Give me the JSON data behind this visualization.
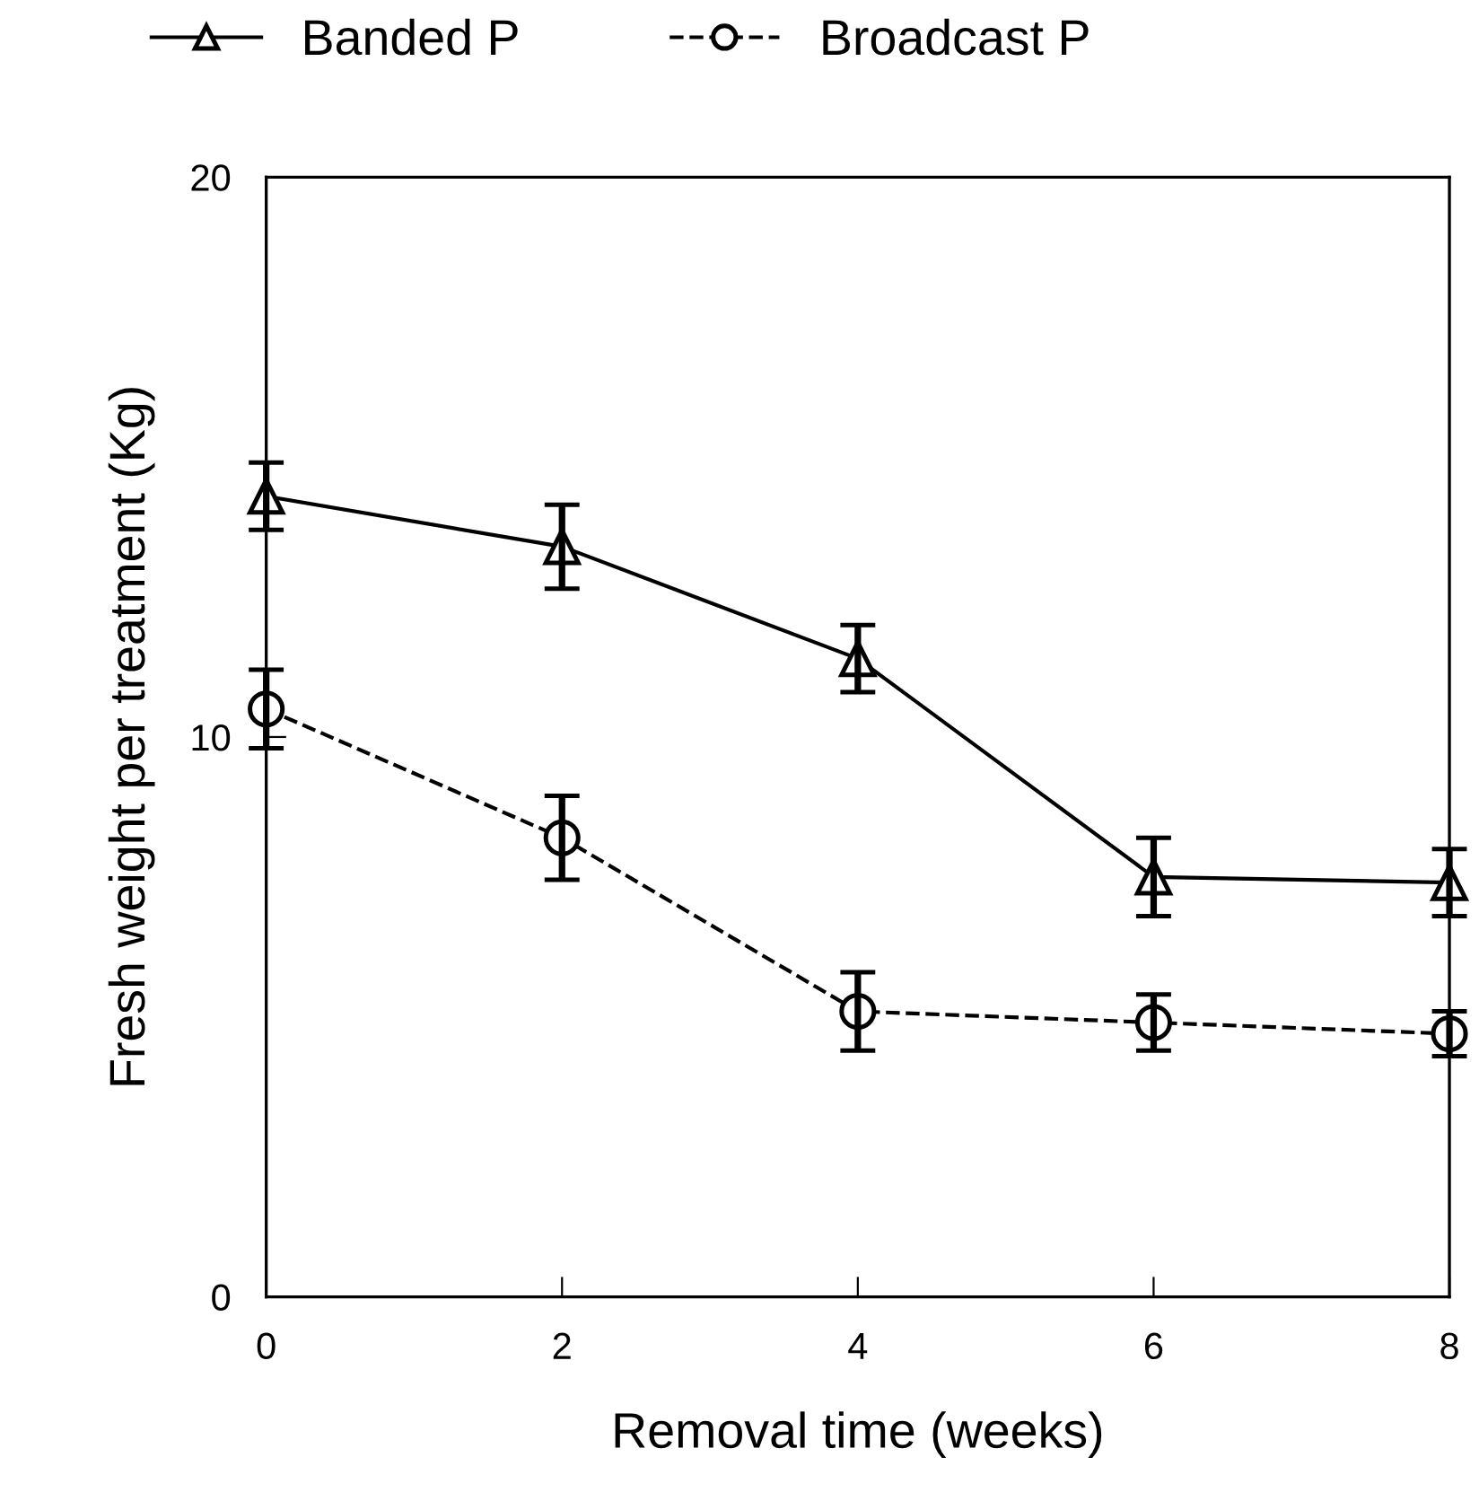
{
  "chart_data": {
    "type": "line",
    "xlabel": "Removal time (weeks)",
    "ylabel": "Fresh weight per treatment (Kg)",
    "x": [
      0,
      2,
      4,
      6,
      8
    ],
    "xlim": [
      0,
      8
    ],
    "xticks": [
      0,
      2,
      4,
      6,
      8
    ],
    "ylim": [
      0,
      20
    ],
    "yticks": [
      0,
      10,
      20
    ],
    "grid": false,
    "legend": "top",
    "series": [
      {
        "name": "Banded P",
        "color": "#000000",
        "marker": "triangle",
        "line_style": "solid",
        "values": [
          14.3,
          13.4,
          11.4,
          7.5,
          7.4
        ],
        "errors": [
          0.6,
          0.75,
          0.6,
          0.7,
          0.6
        ]
      },
      {
        "name": "Broadcast P",
        "color": "#000000",
        "marker": "circle",
        "line_style": "dashed",
        "values": [
          10.5,
          8.2,
          5.1,
          4.9,
          4.7
        ],
        "errors": [
          0.7,
          0.75,
          0.7,
          0.5,
          0.4
        ]
      }
    ]
  }
}
